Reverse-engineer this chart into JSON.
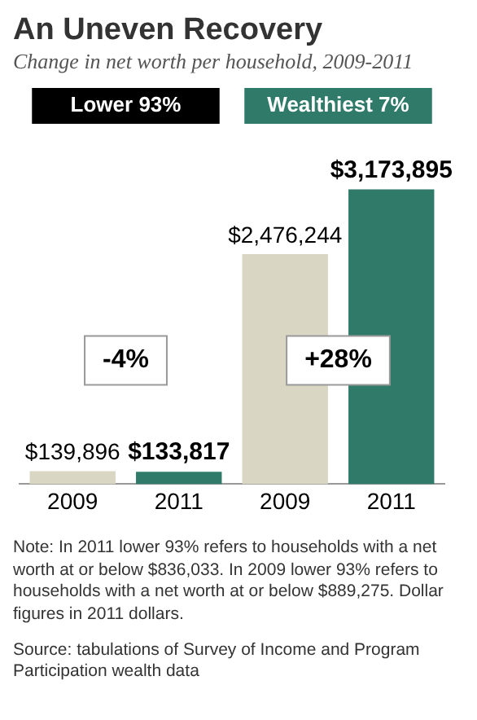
{
  "chart_data": {
    "type": "bar",
    "title": "An Uneven Recovery",
    "subtitle": "Change in net worth per household, 2009-2011",
    "categories": [
      "2009",
      "2011",
      "2009",
      "2011"
    ],
    "values": [
      139896,
      133817,
      2476244,
      3173895
    ],
    "colors": [
      "#d9d6c3",
      "#2f7a68",
      "#d9d6c3",
      "#2f7a68"
    ],
    "value_labels": [
      "$139,896",
      "$133,817",
      "$2,476,244",
      "$3,173,895"
    ],
    "grid": false,
    "legend": false,
    "annotations": [
      "Lower 93%",
      "Wealthiest 7%",
      "-4%",
      "+28%",
      "Note: In 2011 lower 93% refers to households with a net worth at or below $836,033. In 2009 lower 93% refers to households with a net worth at or below $889,275. Dollar figures in 2011 dollars.",
      "Source: tabulations of Survey of Income and Program Participation wealth data"
    ]
  }
}
